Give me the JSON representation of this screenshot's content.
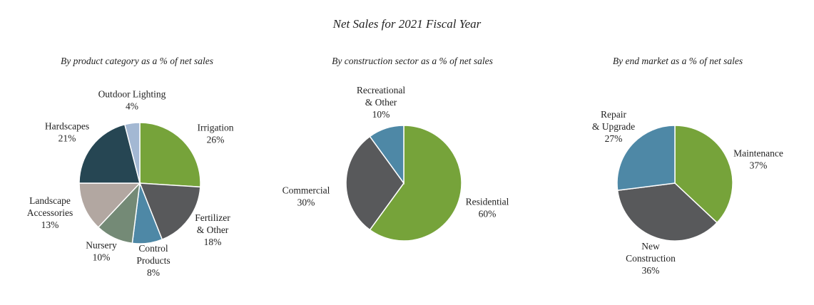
{
  "title": "Net Sales for 2021 Fiscal Year",
  "chart_data": [
    {
      "type": "pie",
      "title": "By product category as a % of net sales",
      "slices": [
        {
          "label": [
            "Irrigation"
          ],
          "pct": "26%",
          "value": 26,
          "color": "#76a33a"
        },
        {
          "label": [
            "Fertilizer",
            "& Other"
          ],
          "pct": "18%",
          "value": 18,
          "color": "#58595b"
        },
        {
          "label": [
            "Control",
            "Products"
          ],
          "pct": "8%",
          "value": 8,
          "color": "#4e88a6"
        },
        {
          "label": [
            "Nursery"
          ],
          "pct": "10%",
          "value": 10,
          "color": "#748a76"
        },
        {
          "label": [
            "Landscape",
            "Accessories"
          ],
          "pct": "13%",
          "value": 13,
          "color": "#b2a7a1"
        },
        {
          "label": [
            "Hardscapes"
          ],
          "pct": "21%",
          "value": 21,
          "color": "#264653"
        },
        {
          "label": [
            "Outdoor Lighting"
          ],
          "pct": "4%",
          "value": 4,
          "color": "#a3b8d3"
        }
      ]
    },
    {
      "type": "pie",
      "title": "By construction sector as a % of net sales",
      "slices": [
        {
          "label": [
            "Residential"
          ],
          "pct": "60%",
          "value": 60,
          "color": "#76a33a"
        },
        {
          "label": [
            "Commercial"
          ],
          "pct": "30%",
          "value": 30,
          "color": "#58595b"
        },
        {
          "label": [
            "Recreational",
            "& Other"
          ],
          "pct": "10%",
          "value": 10,
          "color": "#4e88a6"
        }
      ]
    },
    {
      "type": "pie",
      "title": "By end market as a % of net sales",
      "slices": [
        {
          "label": [
            "Maintenance"
          ],
          "pct": "37%",
          "value": 37,
          "color": "#76a33a"
        },
        {
          "label": [
            "New",
            "Construction"
          ],
          "pct": "36%",
          "value": 36,
          "color": "#58595b"
        },
        {
          "label": [
            "Repair",
            "& Upgrade"
          ],
          "pct": "27%",
          "value": 27,
          "color": "#4e88a6"
        }
      ]
    }
  ]
}
